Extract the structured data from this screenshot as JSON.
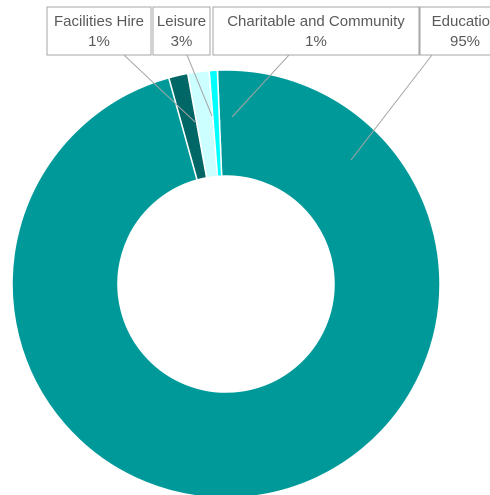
{
  "chart_data": {
    "type": "pie",
    "variant": "doughnut",
    "title": "",
    "legend": "none",
    "slices": [
      {
        "label": "Education",
        "value": 95,
        "display": "95%",
        "color": "#009999"
      },
      {
        "label": "Facilities Hire",
        "value": 1,
        "display": "1%",
        "color": "#006666"
      },
      {
        "label": "Leisure",
        "value": 3,
        "display": "3%",
        "color": "#CCFFFF"
      },
      {
        "label": "Charitable and Community",
        "value": 1,
        "display": "1%",
        "color": "#00FFFF"
      }
    ]
  }
}
